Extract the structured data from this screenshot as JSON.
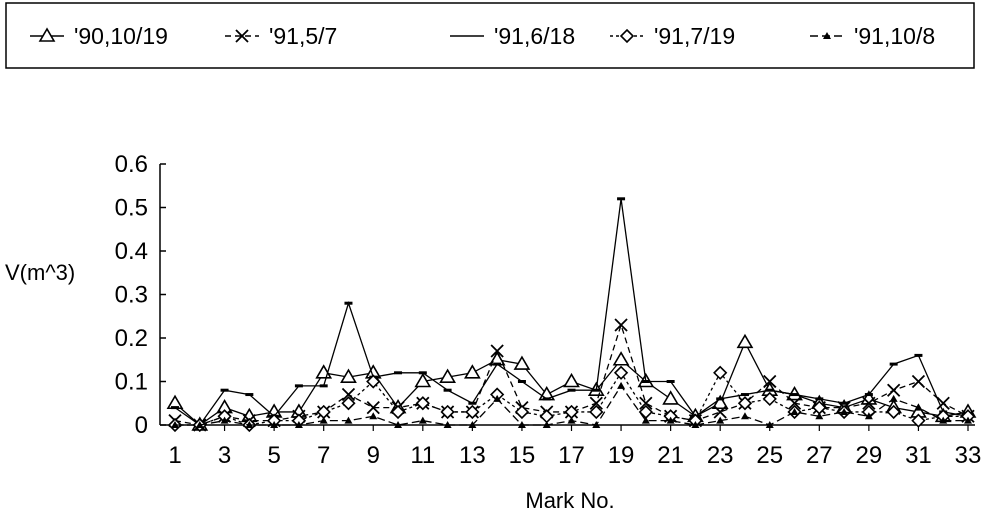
{
  "chart_data": {
    "type": "line",
    "xlabel": "Mark No.",
    "ylabel": "V(m^3)",
    "x": [
      1,
      2,
      3,
      4,
      5,
      6,
      7,
      8,
      9,
      10,
      11,
      12,
      13,
      14,
      15,
      16,
      17,
      18,
      19,
      20,
      21,
      22,
      23,
      24,
      25,
      26,
      27,
      28,
      29,
      30,
      31,
      32,
      33
    ],
    "x_tick_labels": [
      "1",
      "3",
      "5",
      "7",
      "9",
      "11",
      "13",
      "15",
      "17",
      "19",
      "21",
      "23",
      "25",
      "27",
      "29",
      "31",
      "33"
    ],
    "y_tick_labels": [
      "0",
      "0.1",
      "0.2",
      "0.3",
      "0.4",
      "0.5",
      "0.6"
    ],
    "xlim": [
      1,
      33
    ],
    "ylim": [
      0,
      0.6
    ],
    "grid": false,
    "legend_position": "top",
    "series": [
      {
        "name": "'90,10/19",
        "marker": "triangle-open",
        "values": [
          0.05,
          0.0,
          0.04,
          0.02,
          0.03,
          0.03,
          0.12,
          0.11,
          0.12,
          0.04,
          0.1,
          0.11,
          0.12,
          0.15,
          0.14,
          0.07,
          0.1,
          0.08,
          0.15,
          0.1,
          0.06,
          0.02,
          0.05,
          0.19,
          0.08,
          0.07,
          0.05,
          0.04,
          0.06,
          0.04,
          0.03,
          0.02,
          0.03
        ]
      },
      {
        "name": "'91,5/7",
        "marker": "x",
        "values": [
          0.01,
          0.0,
          0.02,
          0.01,
          0.01,
          0.02,
          0.03,
          0.07,
          0.04,
          0.04,
          0.05,
          0.03,
          0.03,
          0.17,
          0.04,
          0.03,
          0.03,
          0.05,
          0.23,
          0.05,
          0.02,
          0.01,
          0.03,
          0.05,
          0.1,
          0.05,
          0.04,
          0.04,
          0.05,
          0.08,
          0.1,
          0.05,
          0.02
        ]
      },
      {
        "name": "'91,6/18",
        "marker": "dash",
        "values": [
          0.04,
          0.0,
          0.08,
          0.07,
          0.02,
          0.09,
          0.09,
          0.28,
          0.11,
          0.12,
          0.12,
          0.08,
          0.05,
          0.14,
          0.1,
          0.06,
          0.08,
          0.08,
          0.52,
          0.1,
          0.1,
          0.02,
          0.06,
          0.07,
          0.08,
          0.07,
          0.06,
          0.05,
          0.07,
          0.14,
          0.16,
          0.03,
          0.02
        ]
      },
      {
        "name": "'91,7/19",
        "marker": "diamond-open",
        "values": [
          0.0,
          0.0,
          0.02,
          0.0,
          0.01,
          0.01,
          0.03,
          0.05,
          0.1,
          0.03,
          0.05,
          0.03,
          0.03,
          0.07,
          0.03,
          0.02,
          0.03,
          0.03,
          0.12,
          0.03,
          0.02,
          0.01,
          0.12,
          0.05,
          0.06,
          0.03,
          0.04,
          0.03,
          0.03,
          0.03,
          0.01,
          0.02,
          0.02
        ]
      },
      {
        "name": "'91,10/8",
        "marker": "triangle-filled",
        "values": [
          0.0,
          0.0,
          0.01,
          0.0,
          0.0,
          0.0,
          0.01,
          0.01,
          0.02,
          0.0,
          0.01,
          0.0,
          0.0,
          0.06,
          0.0,
          0.0,
          0.01,
          0.0,
          0.09,
          0.01,
          0.01,
          0.0,
          0.01,
          0.02,
          0.0,
          0.03,
          0.02,
          0.03,
          0.02,
          0.06,
          0.04,
          0.01,
          0.01
        ]
      }
    ]
  }
}
